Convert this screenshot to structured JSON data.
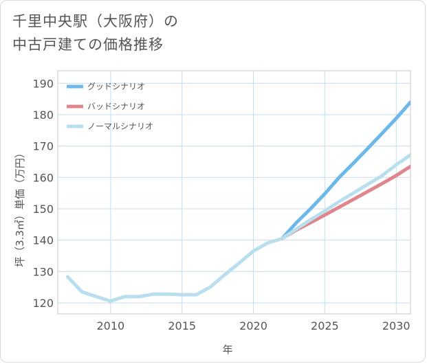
{
  "title": {
    "line1": "千里中央駅（大阪府）の",
    "line2": "中古戸建ての価格推移"
  },
  "chart_data": {
    "type": "line",
    "xlabel": "年",
    "ylabel": "坪（3.3㎡）単価（万円）",
    "xlim": [
      2006.3,
      2031
    ],
    "ylim": [
      116.5,
      194
    ],
    "xticks": [
      2010,
      2015,
      2020,
      2025,
      2030
    ],
    "yticks": [
      120,
      130,
      140,
      150,
      160,
      170,
      180,
      190
    ],
    "grid": true,
    "legend_position": "top-left",
    "series": [
      {
        "name": "グッドシナリオ",
        "color": "#6cb8ea",
        "x": [
          2022,
          2023,
          2024,
          2025,
          2026,
          2027,
          2028,
          2029,
          2030,
          2031
        ],
        "y": [
          140.5,
          145.5,
          150,
          154.8,
          160,
          164.5,
          169.2,
          174,
          178.8,
          184
        ]
      },
      {
        "name": "バッドシナリオ",
        "color": "#e0858c",
        "x": [
          2022,
          2023,
          2024,
          2025,
          2026,
          2027,
          2028,
          2029,
          2030,
          2031
        ],
        "y": [
          140.5,
          143.2,
          145.6,
          148,
          150.5,
          153,
          155.5,
          158,
          160.6,
          163.5
        ]
      },
      {
        "name": "ノーマルシナリオ",
        "color": "#b9dfee",
        "x": [
          2007,
          2008,
          2009,
          2010,
          2011,
          2012,
          2013,
          2014,
          2015,
          2016,
          2017,
          2018,
          2019,
          2020,
          2021,
          2022,
          2023,
          2024,
          2025,
          2026,
          2027,
          2028,
          2029,
          2030,
          2031
        ],
        "y": [
          128.3,
          123.5,
          122,
          120.6,
          122,
          122,
          122.8,
          122.8,
          122.6,
          122.6,
          125.1,
          129,
          132.7,
          136.5,
          139.1,
          140.5,
          143.5,
          146.5,
          149.3,
          152.3,
          155,
          157.8,
          160.5,
          164,
          167.2
        ]
      }
    ]
  }
}
